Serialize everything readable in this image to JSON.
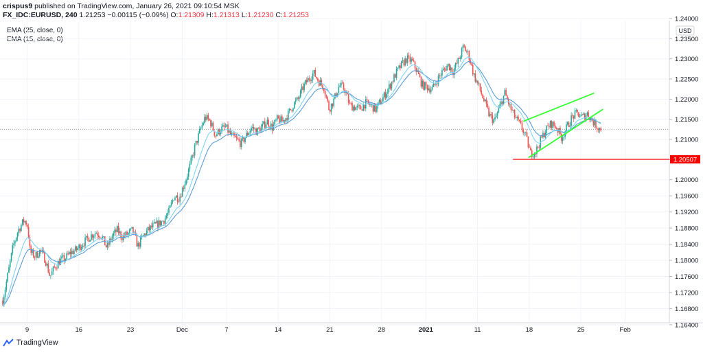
{
  "header": {
    "author": "crispus9",
    "published_text": "published on TradingView.com, January 26, 2021 09:10:54 MSK"
  },
  "symbol_line": {
    "symbol": "FX_IDC:EURUSD, 240",
    "price": "1.21253",
    "change": "−0.00115 (−0.09%)",
    "o_label": "O:",
    "o": "1.21309",
    "h_label": "H:",
    "h": "1.21313",
    "l_label": "L:",
    "l": "1.21230",
    "c_label": "C:",
    "c": "1.21253"
  },
  "indicators": [
    "EMA (25, close, 0)",
    "EMA (15, close, 0)"
  ],
  "currency_label": "USD",
  "price_marker": "1.20507",
  "brand": "TradingView",
  "colors": {
    "up": "#26a69a",
    "down": "#ef5350",
    "ema25": "#5b9bd5",
    "ema15": "#7fd3f5",
    "channel": "#33ff33",
    "support": "#ff0000",
    "axis_text": "#131722"
  },
  "chart_data": {
    "type": "candlestick",
    "ylim": [
      1.1645,
      1.2395
    ],
    "y_ticks": [
      1.164,
      1.168,
      1.172,
      1.176,
      1.18,
      1.184,
      1.188,
      1.192,
      1.196,
      1.2,
      1.205,
      1.21,
      1.215,
      1.22,
      1.225,
      1.23,
      1.235,
      1.24
    ],
    "y_tick_labels": [
      "1.16400",
      "1.16800",
      "1.17200",
      "1.17600",
      "1.18000",
      "1.18400",
      "1.18800",
      "1.19200",
      "1.19600",
      "1.20000",
      "1.20500",
      "1.21000",
      "1.21500",
      "1.22000",
      "1.22500",
      "1.23000",
      "1.23500",
      "1.24000"
    ],
    "x_labels": [
      {
        "day": 0.4,
        "label": "9"
      },
      {
        "day": 7.4,
        "label": "16"
      },
      {
        "day": 14.4,
        "label": "23"
      },
      {
        "day": 21.4,
        "label": "Dec"
      },
      {
        "day": 27.4,
        "label": "7"
      },
      {
        "day": 34.4,
        "label": "14"
      },
      {
        "day": 41.4,
        "label": "21"
      },
      {
        "day": 48.4,
        "label": "28"
      },
      {
        "day": 54.4,
        "label": "2021"
      },
      {
        "day": 61.4,
        "label": "11"
      },
      {
        "day": 68.4,
        "label": "18"
      },
      {
        "day": 75.4,
        "label": "25"
      },
      {
        "day": 81.4,
        "label": "Feb"
      }
    ],
    "x_range": [
      -2.9,
      83.2
    ],
    "close_path": [
      [
        -2.9,
        1.17
      ],
      [
        -2.2,
        1.1765
      ],
      [
        -1.5,
        1.1835
      ],
      [
        -0.8,
        1.1875
      ],
      [
        0.0,
        1.19
      ],
      [
        0.5,
        1.1885
      ],
      [
        0.8,
        1.182
      ],
      [
        1.5,
        1.181
      ],
      [
        2.2,
        1.1825
      ],
      [
        2.9,
        1.18
      ],
      [
        3.5,
        1.176
      ],
      [
        4.2,
        1.1785
      ],
      [
        4.9,
        1.18
      ],
      [
        5.6,
        1.1805
      ],
      [
        6.3,
        1.182
      ],
      [
        7.0,
        1.1825
      ],
      [
        7.7,
        1.1838
      ],
      [
        8.4,
        1.185
      ],
      [
        9.1,
        1.1862
      ],
      [
        9.8,
        1.187
      ],
      [
        10.5,
        1.186
      ],
      [
        11.2,
        1.183
      ],
      [
        11.9,
        1.186
      ],
      [
        12.6,
        1.1875
      ],
      [
        13.3,
        1.1858
      ],
      [
        14.0,
        1.1865
      ],
      [
        14.7,
        1.1875
      ],
      [
        15.4,
        1.1835
      ],
      [
        16.1,
        1.186
      ],
      [
        16.8,
        1.1875
      ],
      [
        17.5,
        1.1885
      ],
      [
        18.2,
        1.189
      ],
      [
        18.9,
        1.19
      ],
      [
        19.6,
        1.192
      ],
      [
        20.3,
        1.196
      ],
      [
        21.0,
        1.1955
      ],
      [
        21.7,
        1.199
      ],
      [
        22.4,
        1.203
      ],
      [
        23.1,
        1.208
      ],
      [
        23.8,
        1.212
      ],
      [
        24.5,
        1.2155
      ],
      [
        25.2,
        1.2145
      ],
      [
        25.9,
        1.211
      ],
      [
        26.6,
        1.2125
      ],
      [
        27.3,
        1.213
      ],
      [
        28.0,
        1.211
      ],
      [
        28.7,
        1.21
      ],
      [
        29.4,
        1.209
      ],
      [
        30.1,
        1.211
      ],
      [
        30.8,
        1.213
      ],
      [
        31.5,
        1.212
      ],
      [
        32.2,
        1.213
      ],
      [
        32.9,
        1.2145
      ],
      [
        33.6,
        1.213
      ],
      [
        34.3,
        1.215
      ],
      [
        35.0,
        1.2145
      ],
      [
        35.7,
        1.216
      ],
      [
        36.4,
        1.2185
      ],
      [
        37.1,
        1.22
      ],
      [
        37.8,
        1.223
      ],
      [
        38.5,
        1.225
      ],
      [
        39.2,
        1.2265
      ],
      [
        39.9,
        1.2245
      ],
      [
        40.6,
        1.223
      ],
      [
        41.3,
        1.2175
      ],
      [
        42.0,
        1.22
      ],
      [
        42.7,
        1.2235
      ],
      [
        43.4,
        1.2225
      ],
      [
        44.1,
        1.2185
      ],
      [
        44.8,
        1.218
      ],
      [
        45.5,
        1.2175
      ],
      [
        46.2,
        1.219
      ],
      [
        46.9,
        1.2185
      ],
      [
        47.6,
        1.2175
      ],
      [
        48.3,
        1.2195
      ],
      [
        49.0,
        1.2215
      ],
      [
        49.7,
        1.224
      ],
      [
        50.4,
        1.2265
      ],
      [
        51.1,
        1.2285
      ],
      [
        51.8,
        1.23
      ],
      [
        52.5,
        1.2295
      ],
      [
        53.2,
        1.227
      ],
      [
        53.9,
        1.2235
      ],
      [
        54.6,
        1.223
      ],
      [
        55.3,
        1.2225
      ],
      [
        56.0,
        1.225
      ],
      [
        56.7,
        1.227
      ],
      [
        57.4,
        1.2285
      ],
      [
        58.1,
        1.227
      ],
      [
        58.8,
        1.2295
      ],
      [
        59.5,
        1.233
      ],
      [
        60.2,
        1.231
      ],
      [
        60.9,
        1.226
      ],
      [
        61.6,
        1.223
      ],
      [
        62.3,
        1.2195
      ],
      [
        63.0,
        1.216
      ],
      [
        63.7,
        1.2145
      ],
      [
        64.4,
        1.218
      ],
      [
        65.1,
        1.2215
      ],
      [
        65.8,
        1.218
      ],
      [
        66.5,
        1.2155
      ],
      [
        67.2,
        1.2135
      ],
      [
        67.9,
        1.211
      ],
      [
        68.6,
        1.2065
      ],
      [
        69.3,
        1.207
      ],
      [
        70.0,
        1.21
      ],
      [
        70.7,
        1.2125
      ],
      [
        71.4,
        1.214
      ],
      [
        72.1,
        1.213
      ],
      [
        72.8,
        1.2105
      ],
      [
        73.5,
        1.213
      ],
      [
        74.2,
        1.2155
      ],
      [
        74.9,
        1.2165
      ],
      [
        75.6,
        1.2155
      ],
      [
        76.3,
        1.2165
      ],
      [
        77.0,
        1.2145
      ],
      [
        77.7,
        1.213
      ],
      [
        78.2,
        1.21253
      ]
    ],
    "channel_upper": [
      [
        67.6,
        1.2145
      ],
      [
        77.2,
        1.2215
      ]
    ],
    "channel_lower": [
      [
        68.3,
        1.2055
      ],
      [
        78.4,
        1.2175
      ]
    ],
    "support_line": {
      "y": 1.20507,
      "x_start": 66.2
    },
    "last_price_dotted": 1.21253
  }
}
